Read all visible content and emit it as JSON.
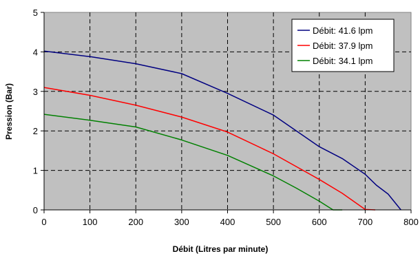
{
  "chart_data": {
    "type": "line",
    "title": "",
    "xlabel": "Débit (Litres par minute)",
    "ylabel": "Pression (Bar)",
    "xlim": [
      0,
      800
    ],
    "ylim": [
      0,
      5
    ],
    "xticks": [
      0,
      100,
      200,
      300,
      400,
      500,
      600,
      700,
      800
    ],
    "yticks": [
      0,
      1,
      2,
      3,
      4,
      5
    ],
    "xtick_labels": [
      "0",
      "100",
      "200",
      "300",
      "400",
      "500",
      "600",
      "700",
      "800"
    ],
    "ytick_labels": [
      "0",
      "1",
      "2",
      "3",
      "4",
      "5"
    ],
    "grid": true,
    "plot_background": "#c0c0c0",
    "legend_position": "top-right",
    "series": [
      {
        "name": "Débit: 41.6 lpm",
        "color": "#000080",
        "points": [
          [
            0,
            4.02
          ],
          [
            100,
            3.88
          ],
          [
            200,
            3.7
          ],
          [
            300,
            3.45
          ],
          [
            400,
            2.95
          ],
          [
            500,
            2.4
          ],
          [
            600,
            1.6
          ],
          [
            650,
            1.3
          ],
          [
            700,
            0.9
          ],
          [
            725,
            0.62
          ],
          [
            750,
            0.4
          ],
          [
            778,
            0.0
          ]
        ]
      },
      {
        "name": "Débit: 37.9 lpm",
        "color": "#ff0000",
        "points": [
          [
            0,
            3.1
          ],
          [
            100,
            2.9
          ],
          [
            200,
            2.65
          ],
          [
            300,
            2.35
          ],
          [
            400,
            1.97
          ],
          [
            500,
            1.42
          ],
          [
            600,
            0.77
          ],
          [
            650,
            0.42
          ],
          [
            700,
            0.01
          ],
          [
            722,
            0.0
          ]
        ]
      },
      {
        "name": "Débit: 34.1 lpm",
        "color": "#008000",
        "points": [
          [
            0,
            2.42
          ],
          [
            100,
            2.27
          ],
          [
            200,
            2.1
          ],
          [
            300,
            1.77
          ],
          [
            400,
            1.38
          ],
          [
            500,
            0.86
          ],
          [
            550,
            0.55
          ],
          [
            600,
            0.22
          ],
          [
            630,
            0.0
          ],
          [
            650,
            0.0
          ]
        ]
      }
    ]
  }
}
